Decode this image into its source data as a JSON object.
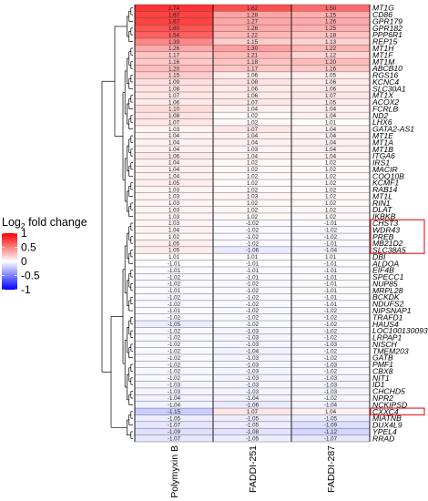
{
  "chart_data": {
    "type": "heatmap",
    "columns": [
      "Polymyxin B",
      "FADDI-251",
      "FADDI-287"
    ],
    "rows": [
      {
        "gene": "MT1G",
        "values": [
          1.74,
          1.62,
          1.5
        ]
      },
      {
        "gene": "CD86",
        "values": [
          1.67,
          1.28,
          1.25
        ]
      },
      {
        "gene": "GPR179",
        "values": [
          1.67,
          1.27,
          1.26
        ]
      },
      {
        "gene": "GPR182",
        "values": [
          1.6,
          1.26,
          1.25
        ]
      },
      {
        "gene": "PPP6R1",
        "values": [
          1.54,
          1.22,
          1.18
        ]
      },
      {
        "gene": "REP15",
        "values": [
          1.39,
          1.15,
          1.13
        ]
      },
      {
        "gene": "MT1H",
        "values": [
          1.26,
          1.3,
          1.22
        ]
      },
      {
        "gene": "MT1F",
        "values": [
          1.17,
          1.21,
          1.12
        ]
      },
      {
        "gene": "MT1M",
        "values": [
          1.16,
          1.18,
          1.2
        ]
      },
      {
        "gene": "ABCB10",
        "values": [
          1.2,
          1.17,
          1.16
        ]
      },
      {
        "gene": "RGS16",
        "values": [
          1.15,
          1.06,
          1.05
        ]
      },
      {
        "gene": "KCNC4",
        "values": [
          1.09,
          1.08,
          1.06
        ]
      },
      {
        "gene": "SLC30A1",
        "values": [
          1.08,
          1.06,
          1.06
        ]
      },
      {
        "gene": "MT1X",
        "values": [
          1.07,
          1.06,
          1.07
        ]
      },
      {
        "gene": "ACOX2",
        "values": [
          1.06,
          1.07,
          1.05
        ]
      },
      {
        "gene": "FCRLB",
        "values": [
          1.1,
          1.04,
          1.04
        ]
      },
      {
        "gene": "ND2",
        "values": [
          1.08,
          1.02,
          1.04
        ]
      },
      {
        "gene": "LHX6",
        "values": [
          1.07,
          1.02,
          1.01
        ]
      },
      {
        "gene": "GATA2-AS1",
        "values": [
          1.03,
          1.07,
          1.04
        ]
      },
      {
        "gene": "MT1E",
        "values": [
          1.04,
          1.04,
          1.04
        ]
      },
      {
        "gene": "MT1A",
        "values": [
          1.04,
          1.04,
          1.04
        ]
      },
      {
        "gene": "MT1B",
        "values": [
          1.04,
          1.03,
          1.04
        ]
      },
      {
        "gene": "ITGA6",
        "values": [
          1.06,
          1.04,
          1.04
        ]
      },
      {
        "gene": "IRS1",
        "values": [
          1.04,
          1.02,
          1.02
        ]
      },
      {
        "gene": "MACIR",
        "values": [
          1.04,
          1.02,
          1.02
        ]
      },
      {
        "gene": "COQ10B",
        "values": [
          1.04,
          1.02,
          1.02
        ]
      },
      {
        "gene": "KCMF1",
        "values": [
          1.05,
          1.02,
          1.02
        ]
      },
      {
        "gene": "RAB14",
        "values": [
          1.03,
          1.02,
          1.02
        ]
      },
      {
        "gene": "MT1L",
        "values": [
          1.03,
          1.03,
          1.02
        ]
      },
      {
        "gene": "RIN1",
        "values": [
          1.03,
          1.02,
          1.02
        ]
      },
      {
        "gene": "DLAT",
        "values": [
          1.03,
          1.02,
          1.02
        ]
      },
      {
        "gene": "IKBKB",
        "values": [
          1.03,
          1.02,
          1.02
        ]
      },
      {
        "gene": "CHST3",
        "values": [
          1.03,
          -1.02,
          -1.01
        ]
      },
      {
        "gene": "WDR43",
        "values": [
          1.04,
          -1.02,
          -1.02
        ]
      },
      {
        "gene": "PREB",
        "values": [
          1.02,
          -1.02,
          -1.02
        ]
      },
      {
        "gene": "MB21D2",
        "values": [
          1.05,
          -1.02,
          -1.01
        ]
      },
      {
        "gene": "SLC38A5",
        "values": [
          1.05,
          -1.06,
          -1.04
        ]
      },
      {
        "gene": "DBI",
        "values": [
          1.01,
          1.01,
          1.01
        ]
      },
      {
        "gene": "ALDOA",
        "values": [
          -1.01,
          -1.01,
          -1.01
        ]
      },
      {
        "gene": "EIF4B",
        "values": [
          -1.01,
          -1.01,
          -1.01
        ]
      },
      {
        "gene": "SPECC1",
        "values": [
          -1.02,
          -1.01,
          -1.01
        ]
      },
      {
        "gene": "NUP85",
        "values": [
          -1.02,
          -1.02,
          -1.01
        ]
      },
      {
        "gene": "MRPL28",
        "values": [
          -1.01,
          -1.02,
          -1.01
        ]
      },
      {
        "gene": "BCKDK",
        "values": [
          -1.02,
          -1.02,
          -1.01
        ]
      },
      {
        "gene": "NDUFS2",
        "values": [
          -1.02,
          -1.02,
          -1.01
        ]
      },
      {
        "gene": "NIPSNAP1",
        "values": [
          -1.01,
          -1.02,
          -1.02
        ]
      },
      {
        "gene": "TRAFD1",
        "values": [
          -1.02,
          -1.02,
          -1.02
        ]
      },
      {
        "gene": "HAUS4",
        "values": [
          -1.05,
          -1.02,
          -1.02
        ]
      },
      {
        "gene": "LOC100130093",
        "values": [
          -1.02,
          -1.03,
          -1.02
        ]
      },
      {
        "gene": "LRPAP1",
        "values": [
          -1.02,
          -1.03,
          -1.02
        ]
      },
      {
        "gene": "NISCH",
        "values": [
          -1.02,
          -1.03,
          -1.03
        ]
      },
      {
        "gene": "TMEM203",
        "values": [
          -1.02,
          -1.04,
          -1.02
        ]
      },
      {
        "gene": "GATB",
        "values": [
          -1.02,
          -1.03,
          -1.02
        ]
      },
      {
        "gene": "PMF1",
        "values": [
          -1.02,
          -1.03,
          -1.03
        ]
      },
      {
        "gene": "CBX8",
        "values": [
          -1.02,
          -1.03,
          -1.02
        ]
      },
      {
        "gene": "NIT1",
        "values": [
          -1.02,
          -1.03,
          -1.03
        ]
      },
      {
        "gene": "ID1",
        "values": [
          -1.03,
          -1.03,
          -1.03
        ]
      },
      {
        "gene": "CHCHD5",
        "values": [
          -1.03,
          -1.03,
          -1.03
        ]
      },
      {
        "gene": "NPR2",
        "values": [
          -1.04,
          -1.04,
          -1.02
        ]
      },
      {
        "gene": "NCKIPSD",
        "values": [
          -1.04,
          -1.06,
          -1.04
        ]
      },
      {
        "gene": "CXXC4",
        "values": [
          -1.15,
          1.07,
          1.04
        ]
      },
      {
        "gene": "MIATNB",
        "values": [
          -1.05,
          -1.05,
          -1.05
        ]
      },
      {
        "gene": "DUX4L9",
        "values": [
          -1.07,
          -1.05,
          -1.09
        ]
      },
      {
        "gene": "YPEL4",
        "values": [
          -1.09,
          -1.08,
          -1.12
        ]
      },
      {
        "gene": "RRAD",
        "values": [
          -1.07,
          -1.05,
          -1.07
        ]
      }
    ],
    "highlighted_rows": [
      "CHST3",
      "WDR43",
      "PREB",
      "MB21D2",
      "SLC38A5",
      "CXXC4"
    ],
    "legend": {
      "title_main": "Log",
      "title_sub": "2",
      "title_rest": " fold change",
      "ticks": [
        "1",
        "0.5",
        "0",
        "-0.5",
        "-1"
      ],
      "range": [
        -1,
        1
      ],
      "colors": {
        "high": "#ff0000",
        "mid": "#ffffff",
        "low": "#0000ff"
      }
    },
    "highlight_color": "#e8252b",
    "dendrogram": true
  }
}
